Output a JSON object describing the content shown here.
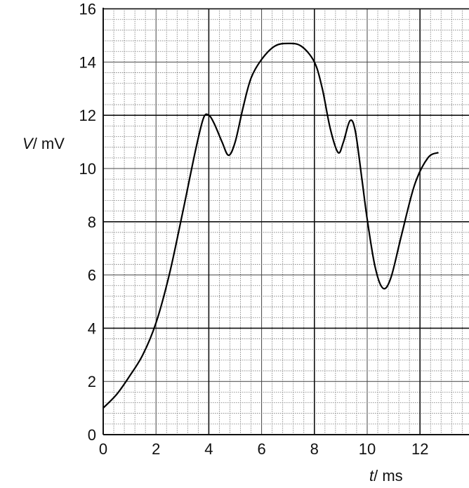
{
  "chart_data": {
    "type": "line",
    "title": "",
    "xlabel": {
      "symbol": "t",
      "unit": "/ ms"
    },
    "ylabel": {
      "symbol": "V",
      "unit": "/ mV"
    },
    "xlim": [
      0,
      14
    ],
    "ylim": [
      0,
      16
    ],
    "x_ticks": [
      "0",
      "2",
      "4",
      "6",
      "8",
      "10",
      "12"
    ],
    "y_ticks": [
      "0",
      "2",
      "4",
      "6",
      "8",
      "10",
      "12",
      "14",
      "16"
    ],
    "grid": {
      "major_step": [
        4,
        4
      ],
      "minor_step": [
        0.4,
        0.4
      ]
    },
    "series": [
      {
        "x": [
          0,
          0.5,
          1.0,
          1.5,
          2.0,
          2.5,
          3.0,
          3.5,
          3.8,
          4.0,
          4.2,
          4.5,
          4.75,
          5.0,
          5.3,
          5.6,
          6.0,
          6.5,
          7.0,
          7.5,
          8.0,
          8.3,
          8.6,
          8.9,
          9.1,
          9.35,
          9.55,
          9.8,
          10.0,
          10.3,
          10.6,
          10.9,
          11.3,
          11.8,
          12.3,
          12.7
        ],
        "y": [
          1.0,
          1.5,
          2.2,
          3.0,
          4.2,
          6.0,
          8.3,
          10.7,
          11.9,
          12.0,
          11.7,
          11.0,
          10.5,
          11.0,
          12.3,
          13.4,
          14.1,
          14.6,
          14.7,
          14.6,
          14.0,
          13.0,
          11.5,
          10.6,
          11.0,
          11.8,
          11.4,
          9.6,
          8.1,
          6.3,
          5.5,
          5.9,
          7.5,
          9.4,
          10.4,
          10.6
        ]
      }
    ]
  }
}
